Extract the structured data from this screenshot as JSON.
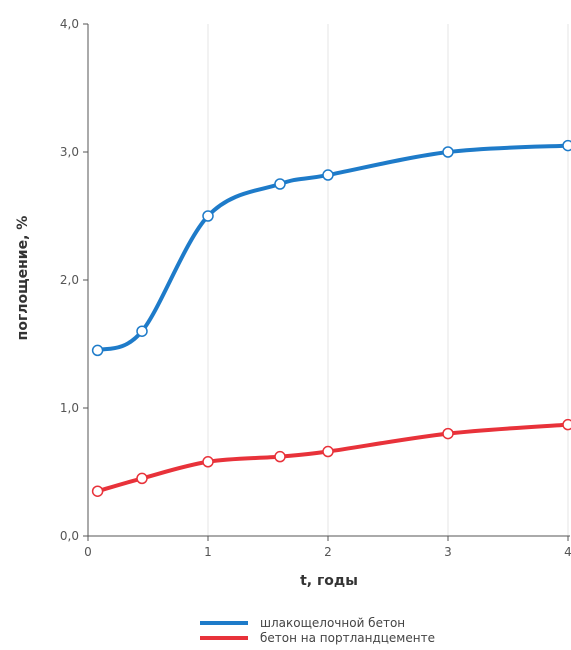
{
  "chart_data": {
    "type": "line",
    "title": "",
    "xlabel": "t, годы",
    "ylabel": "поглощение, %",
    "xlim": [
      0,
      4
    ],
    "ylim": [
      0,
      4
    ],
    "x_ticks": [
      "0",
      "1",
      "2",
      "3",
      "4"
    ],
    "y_ticks": [
      "0,0",
      "1,0",
      "2,0",
      "3,0",
      "4,0"
    ],
    "grid": "vertical",
    "legend": "bottom",
    "series": [
      {
        "name": "шлакощелочной бетон",
        "color": "#1e7bc9",
        "x": [
          0.08,
          0.45,
          1.0,
          1.6,
          2.0,
          3.0,
          4.0
        ],
        "y": [
          1.45,
          1.6,
          2.5,
          2.75,
          2.82,
          3.0,
          3.05
        ]
      },
      {
        "name": "бетон на портландцементе",
        "color": "#e8323a",
        "x": [
          0.08,
          0.45,
          1.0,
          1.6,
          2.0,
          3.0,
          4.0
        ],
        "y": [
          0.35,
          0.45,
          0.58,
          0.62,
          0.66,
          0.8,
          0.87
        ]
      }
    ]
  }
}
